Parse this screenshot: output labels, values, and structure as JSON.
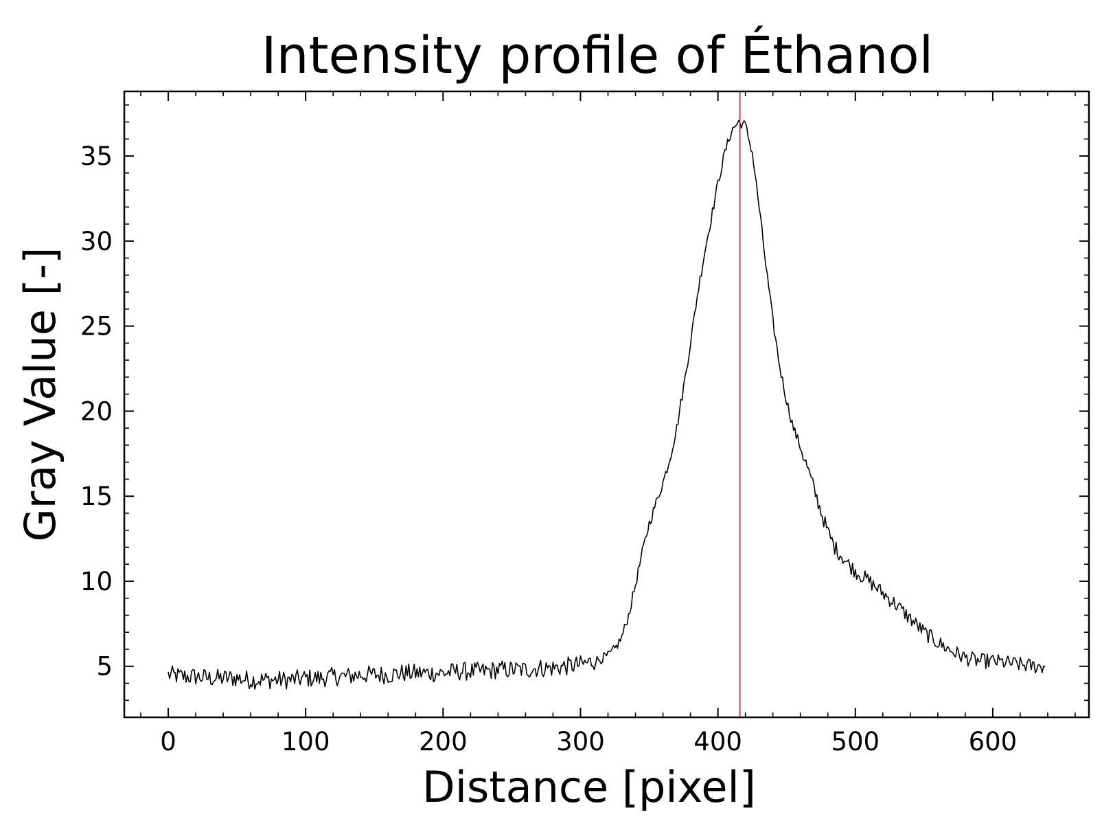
{
  "chart_data": {
    "type": "line",
    "title": "Intensity profile of Éthanol",
    "xlabel": "Distance [pixel]",
    "ylabel": "Gray Value [-]",
    "xlim": [
      -32,
      670
    ],
    "ylim": [
      2,
      38.8
    ],
    "xticks": [
      0,
      100,
      200,
      300,
      400,
      500,
      600
    ],
    "xtick_labels": [
      "0",
      "100",
      "200",
      "300",
      "400",
      "500",
      "600"
    ],
    "yticks": [
      5,
      10,
      15,
      20,
      25,
      30,
      35
    ],
    "ytick_labels": [
      "5",
      "10",
      "15",
      "20",
      "25",
      "30",
      "35"
    ],
    "x_minor_step": 20,
    "y_minor_step": 1,
    "grid": false,
    "ticks_direction": "in",
    "marker_line": {
      "x": 416,
      "color": "#d62728"
    },
    "series": [
      {
        "color": "#000000",
        "x": [
          0,
          10,
          20,
          30,
          40,
          50,
          60,
          70,
          80,
          90,
          100,
          110,
          120,
          130,
          140,
          150,
          160,
          170,
          180,
          190,
          200,
          210,
          220,
          230,
          240,
          250,
          260,
          270,
          280,
          290,
          300,
          310,
          320,
          325,
          330,
          335,
          340,
          345,
          350,
          355,
          360,
          365,
          370,
          375,
          380,
          385,
          390,
          395,
          400,
          405,
          410,
          415,
          420,
          425,
          430,
          435,
          440,
          445,
          450,
          455,
          460,
          465,
          470,
          475,
          480,
          485,
          490,
          495,
          500,
          510,
          520,
          530,
          540,
          550,
          560,
          570,
          580,
          590,
          600,
          610,
          620,
          630,
          638
        ],
        "y": [
          4.5,
          4.4,
          4.4,
          4.3,
          4.3,
          4.3,
          4.2,
          4.2,
          4.2,
          4.2,
          4.3,
          4.3,
          4.4,
          4.4,
          4.5,
          4.5,
          4.5,
          4.6,
          4.6,
          4.6,
          4.6,
          4.7,
          4.7,
          4.7,
          4.8,
          4.8,
          4.8,
          4.9,
          4.9,
          5.0,
          5.1,
          5.3,
          5.6,
          6.0,
          6.7,
          8.0,
          9.8,
          11.7,
          13.4,
          14.6,
          15.8,
          17.2,
          19.0,
          21.4,
          24.0,
          26.8,
          29.2,
          31.3,
          33.4,
          35.2,
          36.5,
          37.0,
          36.8,
          35.2,
          32.0,
          28.5,
          25.3,
          22.6,
          20.6,
          19.0,
          17.9,
          16.7,
          15.4,
          14.1,
          12.9,
          12.0,
          11.5,
          11.0,
          10.6,
          10.0,
          9.3,
          8.6,
          7.8,
          7.0,
          6.4,
          5.9,
          5.5,
          5.3,
          5.3,
          5.2,
          5.1,
          5.0,
          5.0
        ],
        "noise": [
          {
            "x_from": 0,
            "x_to": 310,
            "amplitude": 0.55
          },
          {
            "x_from": 310,
            "x_to": 460,
            "amplitude": 0.3
          },
          {
            "x_from": 460,
            "x_to": 638,
            "amplitude": 0.45
          }
        ]
      }
    ]
  }
}
